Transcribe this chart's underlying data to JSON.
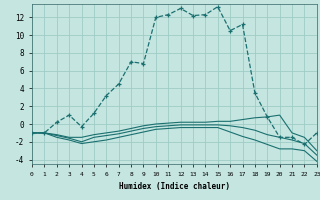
{
  "xlabel": "Humidex (Indice chaleur)",
  "background_color": "#c5e5e0",
  "grid_color": "#9eccc5",
  "line_color": "#1a7070",
  "xlim": [
    0,
    23
  ],
  "ylim": [
    -4.5,
    13.5
  ],
  "xtick_labels": [
    "0",
    "1",
    "2",
    "3",
    "4",
    "5",
    "6",
    "7",
    "8",
    "9",
    "10",
    "11",
    "12",
    "13",
    "14",
    "15",
    "16",
    "17",
    "18",
    "19",
    "20",
    "21",
    "22",
    "23"
  ],
  "ytick_values": [
    -4,
    -2,
    0,
    2,
    4,
    6,
    8,
    10,
    12
  ],
  "curve_main": {
    "x": [
      0,
      1,
      2,
      3,
      4,
      5,
      6,
      7,
      8,
      9,
      10,
      11,
      12,
      13,
      14,
      15,
      16,
      17,
      18,
      19,
      20,
      21,
      22,
      23
    ],
    "y": [
      -1.0,
      -1.0,
      0.2,
      1.0,
      -0.3,
      1.2,
      3.2,
      4.5,
      7.0,
      6.8,
      12.0,
      12.3,
      13.0,
      12.2,
      12.3,
      13.2,
      10.5,
      11.2,
      3.5,
      0.8,
      -1.5,
      -1.5,
      -2.3,
      -1.0
    ]
  },
  "curve_2": {
    "x": [
      0,
      1,
      2,
      3,
      4,
      5,
      6,
      7,
      8,
      9,
      10,
      11,
      12,
      13,
      14,
      15,
      16,
      17,
      18,
      19,
      20,
      21,
      22,
      23
    ],
    "y": [
      -1.0,
      -1.0,
      -1.2,
      -1.5,
      -1.5,
      -1.2,
      -1.0,
      -0.8,
      -0.5,
      -0.2,
      0.0,
      0.1,
      0.2,
      0.2,
      0.2,
      0.3,
      0.3,
      0.5,
      0.7,
      0.8,
      1.0,
      -1.0,
      -1.5,
      -3.0
    ]
  },
  "curve_3": {
    "x": [
      0,
      1,
      2,
      3,
      4,
      5,
      6,
      7,
      8,
      9,
      10,
      11,
      12,
      13,
      14,
      15,
      16,
      17,
      18,
      19,
      20,
      21,
      22,
      23
    ],
    "y": [
      -1.0,
      -1.0,
      -1.3,
      -1.6,
      -2.0,
      -1.5,
      -1.3,
      -1.1,
      -0.8,
      -0.5,
      -0.3,
      -0.2,
      -0.1,
      -0.1,
      -0.1,
      -0.1,
      -0.2,
      -0.4,
      -0.7,
      -1.2,
      -1.5,
      -1.8,
      -2.2,
      -3.5
    ]
  },
  "curve_4": {
    "x": [
      0,
      1,
      2,
      3,
      4,
      5,
      6,
      7,
      8,
      9,
      10,
      11,
      12,
      13,
      14,
      15,
      16,
      17,
      18,
      19,
      20,
      21,
      22,
      23
    ],
    "y": [
      -1.0,
      -1.0,
      -1.5,
      -1.8,
      -2.2,
      -2.0,
      -1.8,
      -1.5,
      -1.2,
      -0.9,
      -0.6,
      -0.5,
      -0.4,
      -0.4,
      -0.4,
      -0.4,
      -0.9,
      -1.4,
      -1.8,
      -2.3,
      -2.8,
      -2.8,
      -3.0,
      -4.2
    ]
  }
}
